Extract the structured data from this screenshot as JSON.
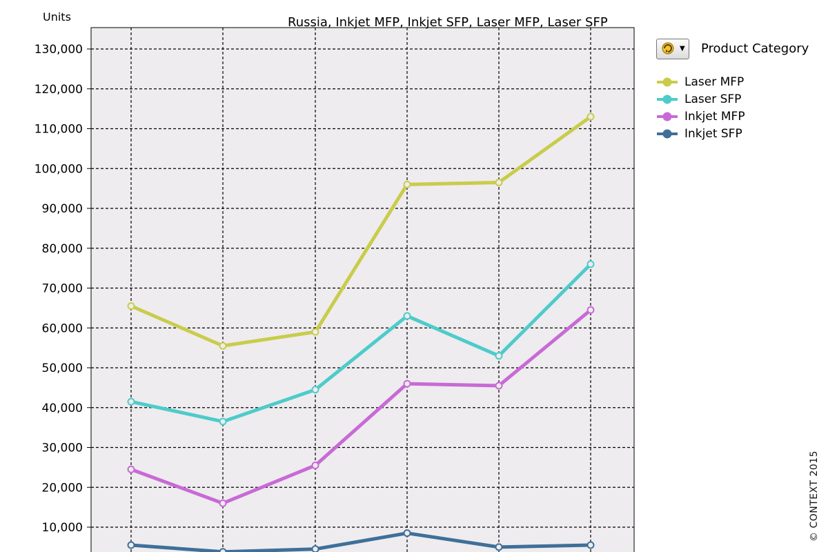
{
  "chart_data": {
    "type": "line",
    "title": "Russia, Inkjet MFP, Inkjet SFP, Laser MFP, Laser SFP",
    "ylabel": "Units",
    "xlabel": "",
    "ylim": [
      0,
      135000
    ],
    "y_ticks": [
      "10,000",
      "20,000",
      "30,000",
      "40,000",
      "50,000",
      "60,000",
      "70,000",
      "80,000",
      "90,000",
      "100,000",
      "110,000",
      "120,000",
      "130,000"
    ],
    "y_tick_values": [
      10000,
      20000,
      30000,
      40000,
      50000,
      60000,
      70000,
      80000,
      90000,
      100000,
      110000,
      120000,
      130000
    ],
    "grid": true,
    "legend_position": "right",
    "legend_title": "Product Category",
    "point_count": 6,
    "series": [
      {
        "name": "Laser MFP",
        "color": "#c9cc4b",
        "values": [
          65500,
          55500,
          59000,
          96000,
          96500,
          113000
        ]
      },
      {
        "name": "Laser SFP",
        "color": "#4ecbcb",
        "values": [
          41500,
          36500,
          44500,
          63000,
          53000,
          76000
        ]
      },
      {
        "name": "Inkjet MFP",
        "color": "#c86ad6",
        "values": [
          24500,
          16000,
          25500,
          46000,
          45500,
          64500
        ]
      },
      {
        "name": "Inkjet SFP",
        "color": "#3f6f99",
        "values": [
          5500,
          3800,
          4500,
          8500,
          5000,
          5500
        ]
      }
    ]
  },
  "legend_button_icon": "refresh-icon",
  "copyright": "© CONTEXT 2015"
}
